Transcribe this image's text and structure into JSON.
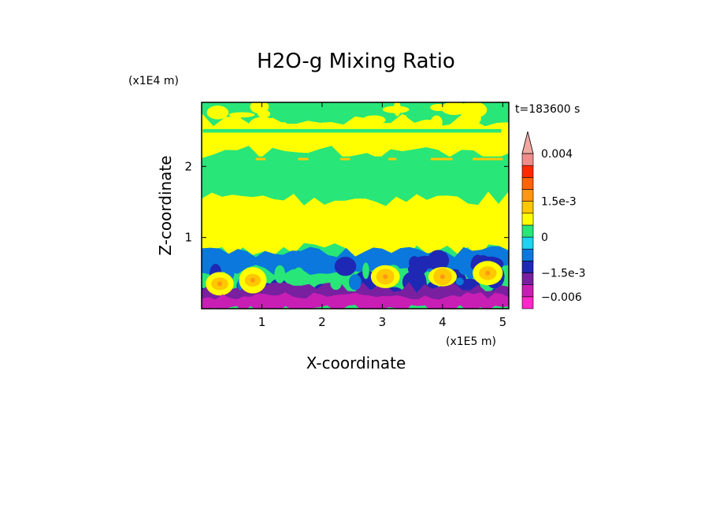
{
  "chart_data": {
    "type": "heatmap",
    "subtype": "filled-contour",
    "title": "H2O-g Mixing Ratio",
    "xlabel": "X-coordinate",
    "ylabel": "Z-coordinate",
    "x_scale_label": "(x1E5 m)",
    "y_scale_label": "(x1E4 m)",
    "time_label": "t=183600 s",
    "xlim": [
      0,
      5.1
    ],
    "ylim": [
      0,
      2.9
    ],
    "x_ticks": [
      {
        "value": 1,
        "label": "1"
      },
      {
        "value": 2,
        "label": "2"
      },
      {
        "value": 3,
        "label": "3"
      },
      {
        "value": 4,
        "label": "4"
      },
      {
        "value": 5,
        "label": "5"
      }
    ],
    "y_ticks": [
      {
        "value": 1,
        "label": "1"
      },
      {
        "value": 2,
        "label": "2"
      }
    ],
    "colorbar": {
      "extend": "max",
      "levels": [
        -0.009,
        -0.006,
        -0.003,
        -0.0015,
        -0.001,
        -0.0005,
        0,
        0.0005,
        0.001,
        0.0015,
        0.002,
        0.0025,
        0.003,
        0.004
      ],
      "colors": [
        "#ff28c8",
        "#c81eb4",
        "#7820a0",
        "#1e28b4",
        "#0a78dc",
        "#1ed2f0",
        "#28e678",
        "#ffff00",
        "#ffc800",
        "#ff9614",
        "#ff6400",
        "#ff2a00",
        "#f08c8c",
        "#f0a8a0"
      ],
      "tick_labels": [
        {
          "value": 0.004,
          "label": "0.004"
        },
        {
          "value": 0.0015,
          "label": "1.5e-3"
        },
        {
          "value": 0,
          "label": "0"
        },
        {
          "value": -0.0015,
          "label": "−1.5e-3"
        },
        {
          "value": -0.006,
          "label": "−0.006"
        }
      ]
    },
    "field_layers": [
      {
        "name": "upper-green-background",
        "value": 0.0003,
        "z_range": [
          0,
          2.9
        ]
      },
      {
        "name": "yellow-band-upper",
        "value": 0.0007,
        "z_range": [
          2.2,
          2.65
        ]
      },
      {
        "name": "orange-streaks",
        "value": 0.0012,
        "z_range": [
          2.0,
          2.12
        ]
      },
      {
        "name": "yellow-mid-troposphere",
        "value": 0.0007,
        "z_range": [
          0.8,
          1.55
        ]
      },
      {
        "name": "cyan-boundary-layer",
        "value": -0.0007,
        "z_range": [
          0.55,
          0.8
        ]
      },
      {
        "name": "blue-plumes",
        "value": -0.0012,
        "z_range": [
          0.15,
          0.7
        ]
      },
      {
        "name": "dark-blue-base",
        "value": -0.0025,
        "z_range": [
          0.1,
          0.3
        ]
      },
      {
        "name": "purple-surface-layer",
        "value": -0.005,
        "z_range": [
          0,
          0.18
        ]
      },
      {
        "name": "orange-moist-cells",
        "value": 0.0013,
        "z_range": [
          0.25,
          0.65
        ]
      }
    ]
  }
}
